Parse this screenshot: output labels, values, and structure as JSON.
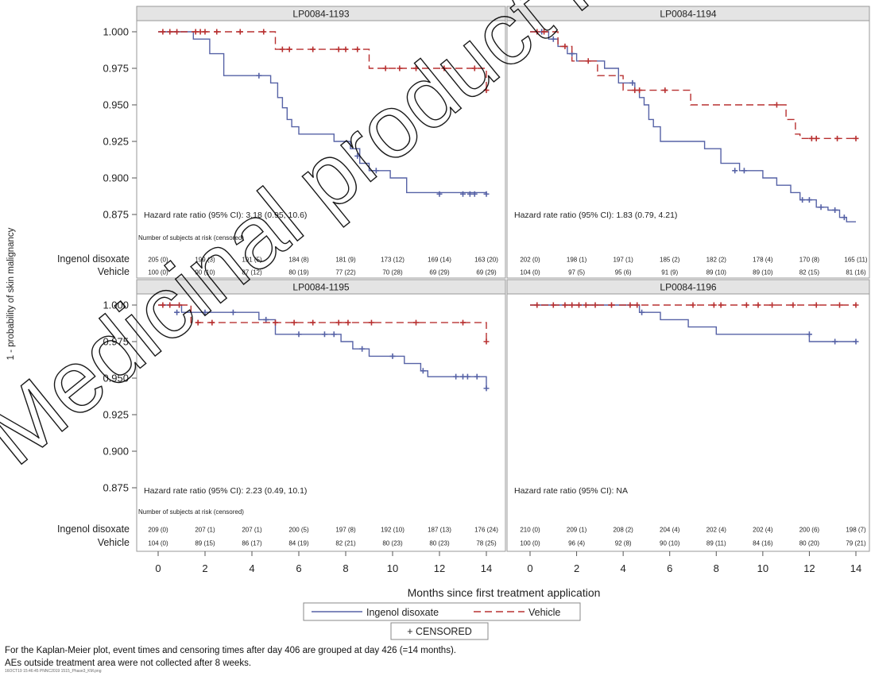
{
  "figure": {
    "y_axis_label": "1 - probability of skin malignancy",
    "x_axis_label": "Months since first treatment application",
    "legend": {
      "ingenol": "Ingenol disoxate",
      "vehicle": "Vehicle",
      "censored": "+ CENSORED"
    },
    "risk_row_labels": [
      "Ingenol disoxate",
      "Vehicle"
    ],
    "risk_header": "Number of subjects at risk (censored)",
    "footnote_1": "For the Kaplan-Meier plot, event times and censoring times after day 406 are grouped at day 426 (=14 months).",
    "footnote_2": "AEs outside treatment area were not collected after 8 weeks.",
    "file_ref": "16OCT19 15:46:45 PNNC2019 1515_Phase3_KM.png",
    "watermark": "Medicinal product no longer authorised",
    "colors": {
      "ingenol": "#5662a6",
      "vehicle": "#b83030",
      "header_bg": "#e4e4e4",
      "frame": "#999999"
    }
  },
  "chart_data": {
    "type": "line",
    "subtype": "kaplan-meier step",
    "xlim": [
      0,
      14
    ],
    "x_ticks": [
      0,
      2,
      4,
      6,
      8,
      10,
      12,
      14
    ],
    "ylim": [
      0.865,
      1.003
    ],
    "y_ticks": [
      1.0,
      0.975,
      0.95,
      0.925,
      0.9,
      0.875
    ],
    "y_tick_labels": [
      "1.000",
      "0.975",
      "0.950",
      "0.925",
      "0.900",
      "0.875"
    ],
    "grid": false,
    "legend_position": "bottom",
    "panels": [
      {
        "title": "LP0084-1193",
        "hazard": "Hazard rate ratio (95% CI): 3.18 (0.95, 10.6)",
        "series": [
          {
            "name": "Ingenol disoxate",
            "steps": [
              [
                0,
                1.0
              ],
              [
                1.5,
                0.995
              ],
              [
                2.2,
                0.985
              ],
              [
                2.8,
                0.97
              ],
              [
                4.8,
                0.965
              ],
              [
                5.1,
                0.955
              ],
              [
                5.3,
                0.948
              ],
              [
                5.5,
                0.94
              ],
              [
                5.7,
                0.935
              ],
              [
                6.0,
                0.93
              ],
              [
                7.5,
                0.925
              ],
              [
                8.2,
                0.92
              ],
              [
                8.6,
                0.91
              ],
              [
                9.0,
                0.905
              ],
              [
                9.9,
                0.9
              ],
              [
                10.6,
                0.89
              ],
              [
                14,
                0.889
              ]
            ],
            "censored": [
              [
                4.3,
                0.97
              ],
              [
                8.5,
                0.915
              ],
              [
                9.3,
                0.905
              ],
              [
                12.0,
                0.889
              ],
              [
                13.0,
                0.889
              ],
              [
                13.3,
                0.889
              ],
              [
                13.5,
                0.889
              ],
              [
                14.0,
                0.889
              ]
            ]
          },
          {
            "name": "Vehicle",
            "steps": [
              [
                0,
                1.0
              ],
              [
                5.0,
                0.988
              ],
              [
                9.0,
                0.975
              ],
              [
                14.0,
                0.96
              ]
            ],
            "censored": [
              [
                0.2,
                1.0
              ],
              [
                0.5,
                1.0
              ],
              [
                0.8,
                1.0
              ],
              [
                1.6,
                1.0
              ],
              [
                1.8,
                1.0
              ],
              [
                2.0,
                1.0
              ],
              [
                2.5,
                1.0
              ],
              [
                3.5,
                1.0
              ],
              [
                4.5,
                1.0
              ],
              [
                5.3,
                0.988
              ],
              [
                5.6,
                0.988
              ],
              [
                6.6,
                0.988
              ],
              [
                7.7,
                0.988
              ],
              [
                8.0,
                0.988
              ],
              [
                8.5,
                0.988
              ],
              [
                9.7,
                0.975
              ],
              [
                10.3,
                0.975
              ],
              [
                11.0,
                0.975
              ],
              [
                12.2,
                0.975
              ],
              [
                13.5,
                0.975
              ],
              [
                14.0,
                0.96
              ]
            ]
          }
        ],
        "risk": {
          "ingenol": [
            "205 (0)",
            "199 (3)",
            "191 (5)",
            "184 (8)",
            "181 (9)",
            "173 (12)",
            "169 (14)",
            "163 (20)"
          ],
          "vehicle": [
            "100 (0)",
            "90 (10)",
            "87 (12)",
            "80 (19)",
            "77 (22)",
            "70 (28)",
            "69 (29)",
            "69 (29)"
          ]
        }
      },
      {
        "title": "LP0084-1194",
        "hazard": "Hazard rate ratio (95% CI): 1.83 (0.79, 4.21)",
        "series": [
          {
            "name": "Ingenol disoxate",
            "steps": [
              [
                0,
                1.0
              ],
              [
                0.8,
                0.995
              ],
              [
                1.2,
                0.99
              ],
              [
                1.6,
                0.985
              ],
              [
                2.0,
                0.98
              ],
              [
                3.2,
                0.975
              ],
              [
                3.8,
                0.965
              ],
              [
                4.5,
                0.96
              ],
              [
                4.7,
                0.955
              ],
              [
                4.9,
                0.95
              ],
              [
                5.1,
                0.94
              ],
              [
                5.3,
                0.935
              ],
              [
                5.6,
                0.925
              ],
              [
                7.5,
                0.92
              ],
              [
                8.2,
                0.91
              ],
              [
                9.0,
                0.905
              ],
              [
                10.0,
                0.9
              ],
              [
                10.6,
                0.895
              ],
              [
                11.2,
                0.89
              ],
              [
                11.6,
                0.885
              ],
              [
                12.3,
                0.88
              ],
              [
                12.8,
                0.878
              ],
              [
                13.3,
                0.873
              ],
              [
                13.6,
                0.87
              ],
              [
                14.0,
                0.87
              ]
            ],
            "censored": [
              [
                0.5,
                1.0
              ],
              [
                1.0,
                0.995
              ],
              [
                1.8,
                0.985
              ],
              [
                4.4,
                0.965
              ],
              [
                8.8,
                0.905
              ],
              [
                9.2,
                0.905
              ],
              [
                11.7,
                0.885
              ],
              [
                12.0,
                0.885
              ],
              [
                12.5,
                0.88
              ],
              [
                13.1,
                0.878
              ],
              [
                13.5,
                0.873
              ]
            ]
          },
          {
            "name": "Vehicle",
            "steps": [
              [
                0,
                1.0
              ],
              [
                1.2,
                0.99
              ],
              [
                1.8,
                0.98
              ],
              [
                2.9,
                0.97
              ],
              [
                4.0,
                0.96
              ],
              [
                6.9,
                0.95
              ],
              [
                11.0,
                0.94
              ],
              [
                11.4,
                0.93
              ],
              [
                11.6,
                0.927
              ],
              [
                14.0,
                0.927
              ]
            ],
            "censored": [
              [
                0.3,
                1.0
              ],
              [
                0.6,
                1.0
              ],
              [
                1.5,
                0.99
              ],
              [
                2.5,
                0.98
              ],
              [
                4.5,
                0.96
              ],
              [
                4.7,
                0.96
              ],
              [
                5.8,
                0.96
              ],
              [
                10.6,
                0.95
              ],
              [
                12.1,
                0.927
              ],
              [
                12.3,
                0.927
              ],
              [
                13.2,
                0.927
              ],
              [
                14.0,
                0.927
              ]
            ]
          }
        ],
        "risk": {
          "ingenol": [
            "202 (0)",
            "198 (1)",
            "197 (1)",
            "185 (2)",
            "182 (2)",
            "178 (4)",
            "170 (8)",
            "165 (11)"
          ],
          "vehicle": [
            "104 (0)",
            "97 (5)",
            "95 (6)",
            "91 (9)",
            "89 (10)",
            "89 (10)",
            "82 (15)",
            "81 (16)"
          ]
        }
      },
      {
        "title": "LP0084-1195",
        "hazard": "Hazard rate ratio (95% CI): 2.23 (0.49, 10.1)",
        "series": [
          {
            "name": "Ingenol disoxate",
            "steps": [
              [
                0,
                1.0
              ],
              [
                1.0,
                0.995
              ],
              [
                4.3,
                0.99
              ],
              [
                5.0,
                0.98
              ],
              [
                7.8,
                0.975
              ],
              [
                8.3,
                0.97
              ],
              [
                9.0,
                0.965
              ],
              [
                10.5,
                0.96
              ],
              [
                11.2,
                0.955
              ],
              [
                11.5,
                0.951
              ],
              [
                14.0,
                0.943
              ]
            ],
            "censored": [
              [
                0.8,
                0.995
              ],
              [
                2.0,
                0.995
              ],
              [
                3.2,
                0.995
              ],
              [
                4.6,
                0.99
              ],
              [
                6.0,
                0.98
              ],
              [
                7.1,
                0.98
              ],
              [
                7.5,
                0.98
              ],
              [
                8.7,
                0.97
              ],
              [
                10.0,
                0.965
              ],
              [
                11.3,
                0.955
              ],
              [
                12.7,
                0.951
              ],
              [
                13.0,
                0.951
              ],
              [
                13.2,
                0.951
              ],
              [
                13.6,
                0.951
              ],
              [
                14.0,
                0.943
              ]
            ]
          },
          {
            "name": "Vehicle",
            "steps": [
              [
                0,
                1.0
              ],
              [
                1.4,
                0.988
              ],
              [
                14.0,
                0.975
              ]
            ],
            "censored": [
              [
                0.2,
                1.0
              ],
              [
                0.5,
                1.0
              ],
              [
                0.9,
                1.0
              ],
              [
                1.7,
                0.988
              ],
              [
                2.3,
                0.988
              ],
              [
                5.0,
                0.988
              ],
              [
                5.8,
                0.988
              ],
              [
                6.6,
                0.988
              ],
              [
                7.7,
                0.988
              ],
              [
                8.1,
                0.988
              ],
              [
                9.1,
                0.988
              ],
              [
                11.0,
                0.988
              ],
              [
                13.0,
                0.988
              ],
              [
                14.0,
                0.975
              ]
            ]
          }
        ],
        "risk": {
          "ingenol": [
            "209 (0)",
            "207 (1)",
            "207 (1)",
            "200 (5)",
            "197 (8)",
            "192 (10)",
            "187 (13)",
            "176 (24)"
          ],
          "vehicle": [
            "104 (0)",
            "89 (15)",
            "86 (17)",
            "84 (19)",
            "82 (21)",
            "80 (23)",
            "80 (23)",
            "78 (25)"
          ]
        }
      },
      {
        "title": "LP0084-1196",
        "hazard": "Hazard rate ratio (95% CI): NA",
        "series": [
          {
            "name": "Ingenol disoxate",
            "steps": [
              [
                0,
                1.0
              ],
              [
                4.7,
                0.995
              ],
              [
                5.6,
                0.99
              ],
              [
                6.8,
                0.985
              ],
              [
                8.0,
                0.98
              ],
              [
                12.0,
                0.975
              ],
              [
                12.6,
                0.975
              ],
              [
                14.0,
                0.975
              ]
            ],
            "censored": [
              [
                4.8,
                0.995
              ],
              [
                12.0,
                0.98
              ],
              [
                13.1,
                0.975
              ],
              [
                14.0,
                0.975
              ]
            ]
          },
          {
            "name": "Vehicle",
            "steps": [
              [
                0,
                1.0
              ],
              [
                14.0,
                1.0
              ]
            ],
            "censored": [
              [
                0.3,
                1.0
              ],
              [
                1.0,
                1.0
              ],
              [
                1.5,
                1.0
              ],
              [
                1.8,
                1.0
              ],
              [
                2.1,
                1.0
              ],
              [
                2.4,
                1.0
              ],
              [
                2.8,
                1.0
              ],
              [
                3.5,
                1.0
              ],
              [
                4.3,
                1.0
              ],
              [
                4.6,
                1.0
              ],
              [
                7.0,
                1.0
              ],
              [
                7.9,
                1.0
              ],
              [
                8.2,
                1.0
              ],
              [
                9.3,
                1.0
              ],
              [
                9.8,
                1.0
              ],
              [
                10.4,
                1.0
              ],
              [
                11.3,
                1.0
              ],
              [
                12.3,
                1.0
              ],
              [
                13.3,
                1.0
              ],
              [
                14.0,
                1.0
              ]
            ]
          }
        ],
        "risk": {
          "ingenol": [
            "210 (0)",
            "209 (1)",
            "208 (2)",
            "204 (4)",
            "202 (4)",
            "202 (4)",
            "200 (6)",
            "198 (7)"
          ],
          "vehicle": [
            "100 (0)",
            "96 (4)",
            "92 (8)",
            "90 (10)",
            "89 (11)",
            "84 (16)",
            "80 (20)",
            "79 (21)"
          ]
        }
      }
    ]
  }
}
